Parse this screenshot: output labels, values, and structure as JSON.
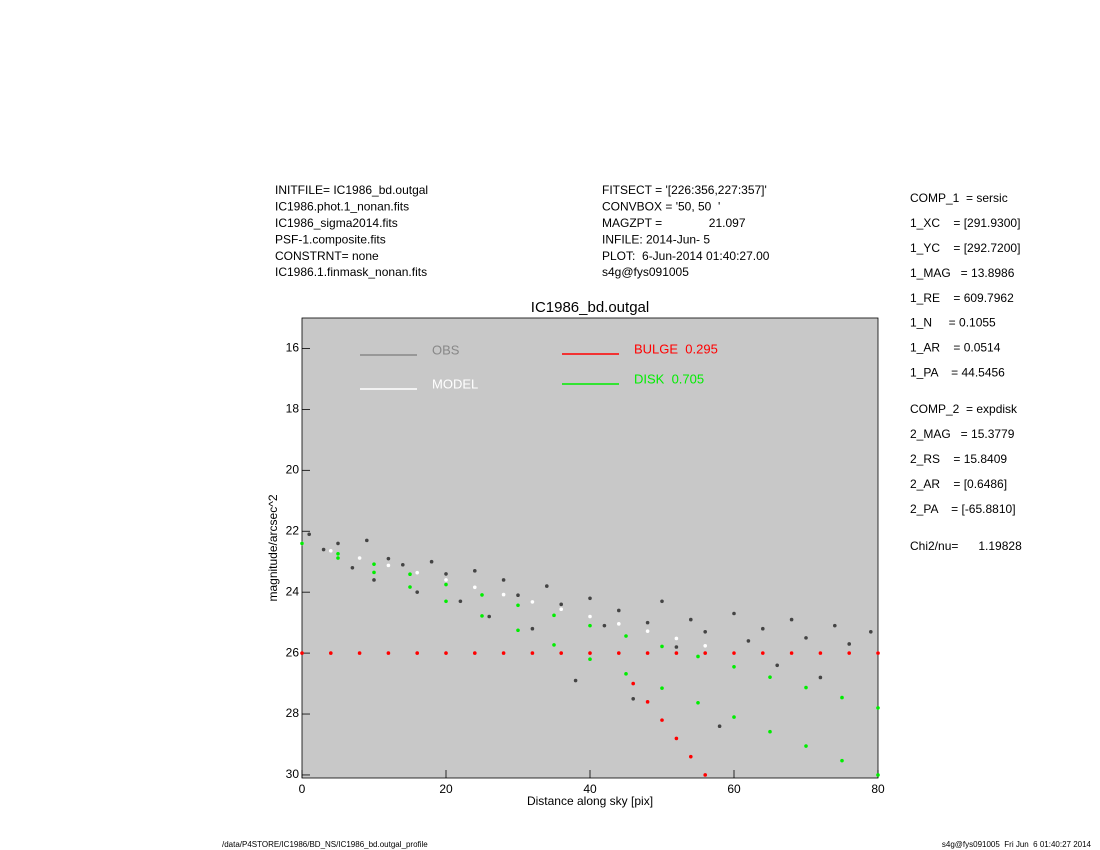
{
  "header": {
    "left": [
      "INITFILE= IC1986_bd.outgal",
      "IC1986.phot.1_nonan.fits",
      "IC1986_sigma2014.fits",
      "PSF-1.composite.fits",
      "CONSTRNT= none",
      "IC1986.1.finmask_nonan.fits"
    ],
    "middle": [
      "FITSECT = '[226:356,227:357]'",
      "CONVBOX = '50, 50  '",
      "MAGZPT =              21.097",
      "INFILE: 2014-Jun- 5",
      "PLOT:  6-Jun-2014 01:40:27.00",
      "s4g@fys091005"
    ],
    "parameters": [
      [
        "COMP_1  = sersic",
        "1_XC    = [291.9300]",
        "1_YC    = [292.7200]",
        "1_MAG   = 13.8986",
        "1_RE    = 609.7962",
        "1_N     = 0.1055",
        "1_AR    = 0.0514",
        "1_PA    = 44.5456"
      ],
      [
        "COMP_2  = expdisk",
        "2_MAG   = 15.3779",
        "2_RS    = 15.8409",
        "2_AR    = [0.6486]",
        "2_PA    = [-65.8810]"
      ],
      [
        "Chi2/nu=      1.19828"
      ]
    ]
  },
  "chart_data": {
    "type": "scatter",
    "title": "IC1986_bd.outgal",
    "xlabel": "Distance along sky [pix]",
    "ylabel": "magnitude/arcsec^2",
    "xlim": [
      0,
      80
    ],
    "ylim": [
      15,
      30.1
    ],
    "y_inverted": true,
    "xticks": [
      0,
      20,
      40,
      60,
      80
    ],
    "yticks": [
      16,
      18,
      20,
      22,
      24,
      26,
      28,
      30
    ],
    "series": [
      {
        "name": "OBS",
        "color": "#444444",
        "legend_color": "#888888",
        "x": [
          1,
          3,
          5,
          7,
          9,
          10,
          12,
          14,
          16,
          18,
          20,
          22,
          24,
          26,
          28,
          30,
          32,
          34,
          36,
          38,
          40,
          42,
          44,
          46,
          48,
          50,
          52,
          54,
          56,
          58,
          60,
          62,
          64,
          66,
          68,
          70,
          72,
          74,
          76,
          79
        ],
        "values": [
          22.1,
          22.6,
          22.4,
          23.2,
          22.3,
          23.6,
          22.9,
          23.1,
          24.0,
          23.0,
          23.4,
          24.3,
          23.3,
          24.8,
          23.6,
          24.1,
          25.2,
          23.8,
          24.4,
          26.9,
          24.2,
          25.1,
          24.6,
          27.5,
          25.0,
          24.3,
          25.8,
          24.9,
          25.3,
          28.4,
          24.7,
          25.6,
          25.2,
          26.4,
          24.9,
          25.5,
          26.8,
          25.1,
          25.7,
          25.3
        ]
      },
      {
        "name": "MODEL",
        "color": "#ffffff",
        "legend_color": "#ffffff",
        "x": [
          0,
          4,
          8,
          12,
          16,
          20,
          24,
          28,
          32,
          36,
          40,
          44,
          48,
          52,
          56,
          60,
          64,
          68,
          72,
          76,
          80
        ],
        "values": [
          22.4,
          22.64,
          22.88,
          23.12,
          23.36,
          23.6,
          23.84,
          24.08,
          24.32,
          24.56,
          24.8,
          25.04,
          25.28,
          25.52,
          25.76,
          26.0,
          26.0,
          26.0,
          26.0,
          26.0,
          26.0
        ]
      },
      {
        "name": "BULGE  0.295",
        "color": "#ff0000",
        "legend_color": "#ff0000",
        "x": [
          0,
          4,
          8,
          12,
          16,
          20,
          24,
          28,
          32,
          36,
          40,
          44,
          48,
          52,
          56,
          60,
          64,
          68,
          72,
          76,
          80,
          46,
          48,
          50,
          52,
          54,
          56
        ],
        "values": [
          26,
          26,
          26,
          26,
          26,
          26,
          26,
          26,
          26,
          26,
          26,
          26,
          26,
          26,
          26,
          26,
          26,
          26,
          26,
          26,
          26,
          27,
          27.6,
          28.2,
          28.8,
          29.4,
          30
        ]
      },
      {
        "name": "DISK  0.705",
        "color": "#00ee00",
        "legend_color": "#00ee00",
        "x": [
          0,
          5,
          10,
          15,
          20,
          25,
          30,
          35,
          40,
          45,
          50,
          55,
          60,
          65,
          70,
          75,
          80,
          5,
          10,
          15,
          20,
          25,
          30,
          35,
          40,
          45,
          50,
          55,
          60,
          65,
          70,
          75,
          80
        ],
        "values": [
          22.4,
          22.74,
          23.08,
          23.41,
          23.75,
          24.09,
          24.43,
          24.76,
          25.1,
          25.44,
          25.78,
          26.11,
          26.45,
          26.79,
          27.13,
          27.46,
          27.8,
          22.88,
          23.35,
          23.83,
          24.3,
          24.78,
          25.25,
          25.73,
          26.2,
          26.68,
          27.15,
          27.63,
          28.1,
          28.58,
          29.05,
          29.53,
          30.0
        ]
      }
    ]
  },
  "footer": {
    "left": "/data/P4STORE/IC1986/BD_NS/IC1986_bd.outgal_profile",
    "right": "s4g@fys091005  Fri Jun  6 01:40:27 2014"
  }
}
